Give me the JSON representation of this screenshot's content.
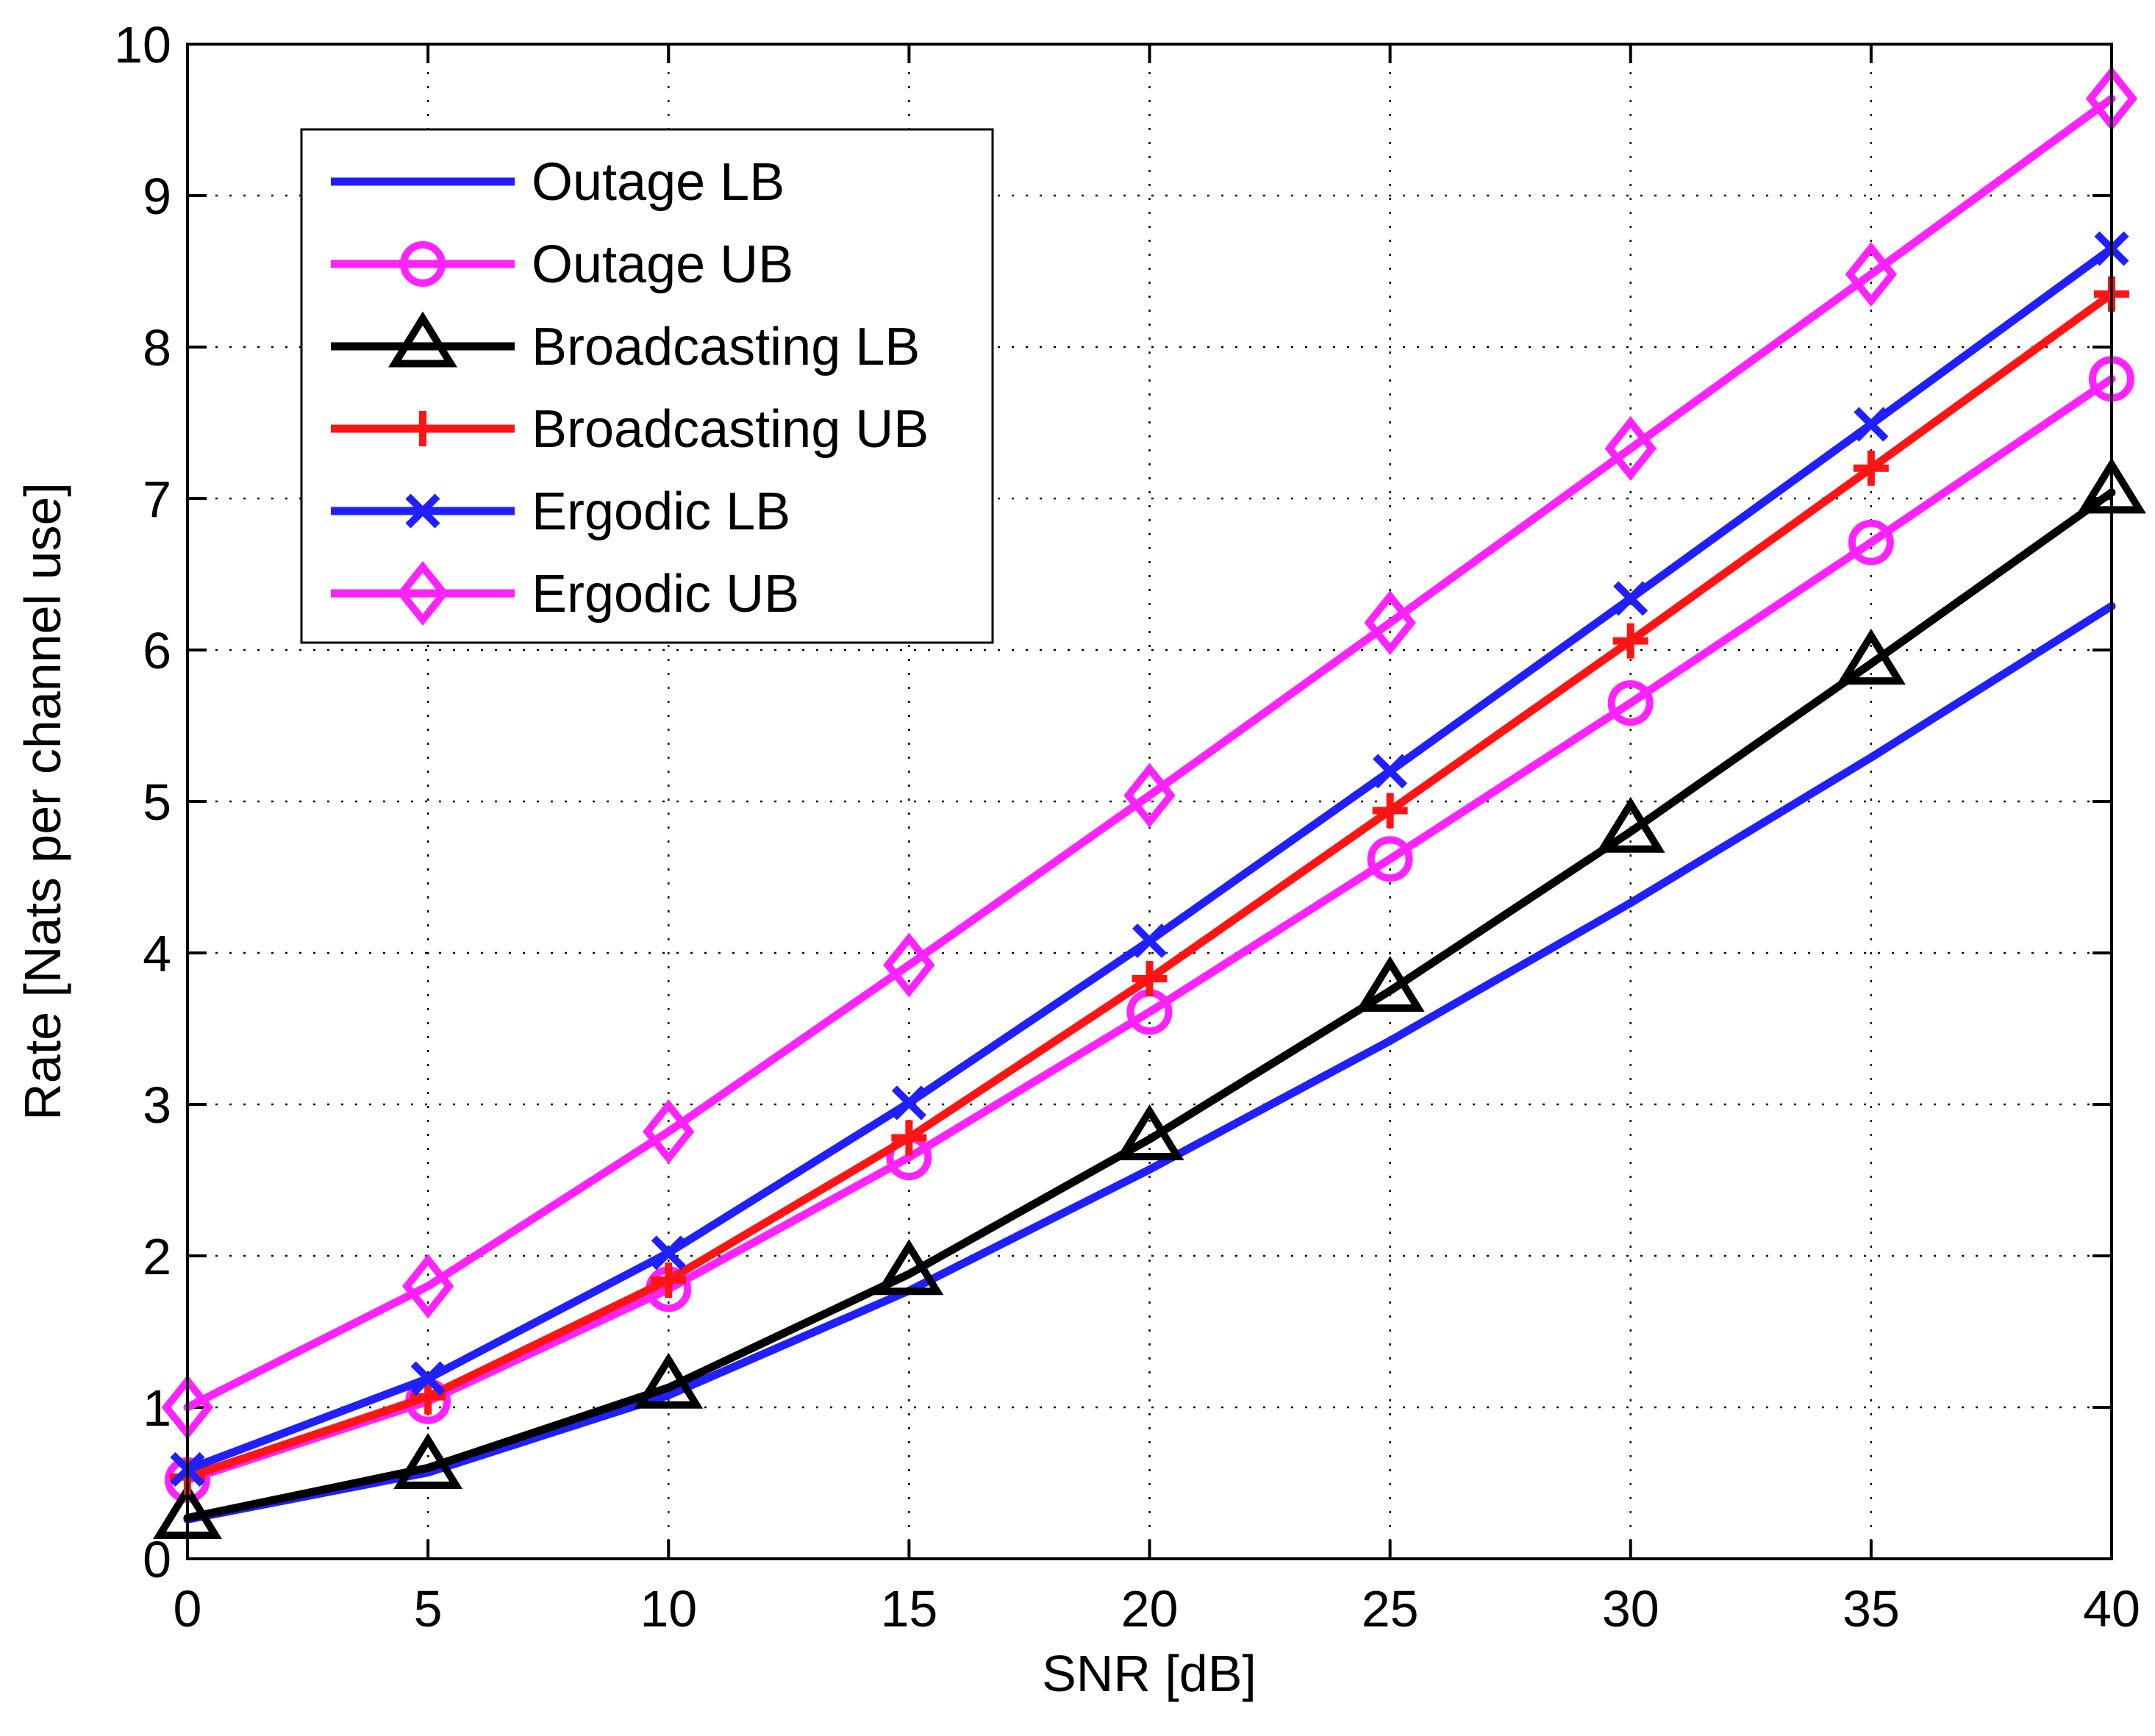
{
  "chart_data": {
    "type": "line",
    "title": "",
    "xlabel": "SNR [dB]",
    "ylabel": "Rate [Nats per channel use]",
    "xlim": [
      0,
      40
    ],
    "ylim": [
      0,
      10
    ],
    "xticks": [
      0,
      5,
      10,
      15,
      20,
      25,
      30,
      35,
      40
    ],
    "yticks": [
      0,
      1,
      2,
      3,
      4,
      5,
      6,
      7,
      8,
      9,
      10
    ],
    "grid": true,
    "legend_position": "top-left",
    "x": [
      0,
      5,
      10,
      15,
      20,
      25,
      30,
      35,
      40
    ],
    "series": [
      {
        "name": "Outage LB",
        "color": "#1f1fff",
        "marker": "none",
        "values": [
          0.26,
          0.57,
          1.08,
          1.77,
          2.57,
          3.42,
          4.33,
          5.29,
          6.29
        ]
      },
      {
        "name": "Outage UB",
        "color": "#ff22ff",
        "marker": "circle",
        "values": [
          0.52,
          1.04,
          1.78,
          2.65,
          3.61,
          4.62,
          5.65,
          6.71,
          7.79
        ]
      },
      {
        "name": "Broadcasting LB",
        "color": "#000000",
        "marker": "triangle",
        "values": [
          0.27,
          0.6,
          1.13,
          1.88,
          2.77,
          3.75,
          4.8,
          5.91,
          7.04
        ]
      },
      {
        "name": "Broadcasting UB",
        "color": "#ff1414",
        "marker": "plus",
        "values": [
          0.54,
          1.07,
          1.84,
          2.78,
          3.83,
          4.94,
          6.06,
          7.2,
          8.35
        ]
      },
      {
        "name": "Ergodic LB",
        "color": "#1f1fff",
        "marker": "x",
        "values": [
          0.59,
          1.19,
          2.02,
          3.01,
          4.08,
          5.2,
          6.34,
          7.49,
          8.65
        ]
      },
      {
        "name": "Ergodic UB",
        "color": "#ff22ff",
        "marker": "diamond",
        "values": [
          1.0,
          1.8,
          2.82,
          3.92,
          5.04,
          6.18,
          7.33,
          8.48,
          9.64
        ]
      }
    ]
  }
}
